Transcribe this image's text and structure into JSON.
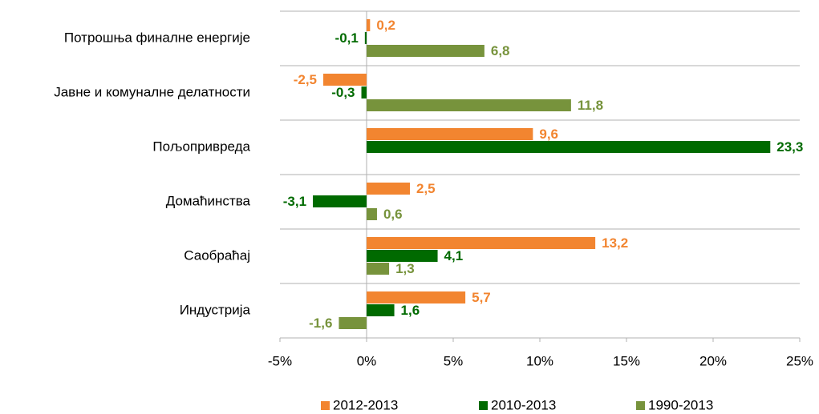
{
  "chart_data": {
    "type": "hbar",
    "categories": [
      "Потрошња финалне енергије",
      "Јавне и комуналне делатности",
      "Пољопривреда",
      "Домаћинства",
      "Саобраћај",
      "Индустрија"
    ],
    "series": [
      {
        "name": "2012-2013",
        "color": "#f28530",
        "values": [
          0.2,
          -2.5,
          9.6,
          2.5,
          13.2,
          5.7
        ],
        "value_labels": [
          "0,2",
          "-2,5",
          "9,6",
          "2,5",
          "13,2",
          "5,7"
        ]
      },
      {
        "name": "2010-2013",
        "color": "#006a00",
        "values": [
          -0.1,
          -0.3,
          23.3,
          -3.1,
          4.1,
          1.6
        ],
        "value_labels": [
          "-0,1",
          "-0,3",
          "23,3",
          "-3,1",
          "4,1",
          "1,6"
        ]
      },
      {
        "name": "1990-2013",
        "color": "#77933c",
        "values": [
          6.8,
          11.8,
          null,
          0.6,
          1.3,
          -1.6
        ],
        "value_labels": [
          "6,8",
          "11,8",
          null,
          "0,6",
          "1,3",
          "-1,6"
        ]
      }
    ],
    "xlim": [
      -5,
      25
    ],
    "xticks": [
      {
        "value": -5,
        "label": "-5%"
      },
      {
        "value": 0,
        "label": "0%"
      },
      {
        "value": 5,
        "label": "5%"
      },
      {
        "value": 10,
        "label": "10%"
      },
      {
        "value": 15,
        "label": "15%"
      },
      {
        "value": 20,
        "label": "20%"
      },
      {
        "value": 25,
        "label": "25%"
      }
    ],
    "legend": "bottom"
  }
}
